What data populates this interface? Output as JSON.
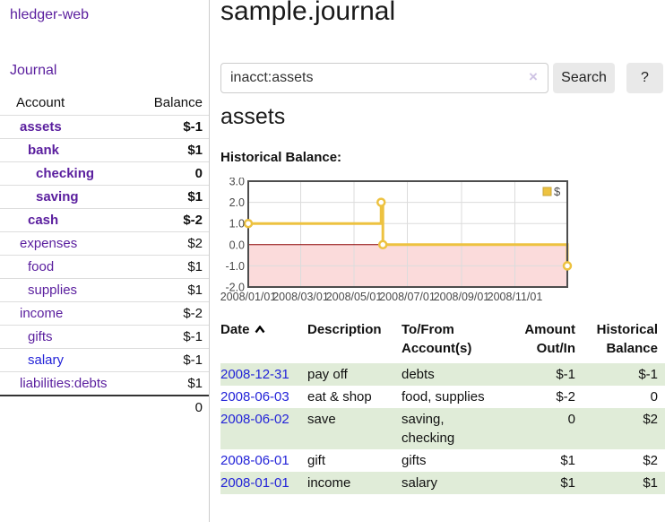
{
  "sidebar": {
    "brand": "hledger-web",
    "nav": {
      "journal": "Journal"
    },
    "accounts_table": {
      "headers": {
        "account": "Account",
        "balance": "Balance"
      },
      "rows": [
        {
          "name": "assets",
          "depth": 0,
          "bold": true,
          "link_color": "purple",
          "balance": "$-1",
          "balance_tone": "neg-strong"
        },
        {
          "name": "bank",
          "depth": 1,
          "bold": true,
          "link_color": "purple",
          "balance": "$1",
          "balance_tone": "normal"
        },
        {
          "name": "checking",
          "depth": 2,
          "bold": true,
          "link_color": "purple",
          "balance": "0",
          "balance_tone": "normal"
        },
        {
          "name": "saving",
          "depth": 2,
          "bold": true,
          "link_color": "purple",
          "balance": "$1",
          "balance_tone": "normal"
        },
        {
          "name": "cash",
          "depth": 1,
          "bold": true,
          "link_color": "purple",
          "balance": "$-2",
          "balance_tone": "neg-strong"
        },
        {
          "name": "expenses",
          "depth": 0,
          "bold": false,
          "link_color": "purple",
          "balance": "$2",
          "balance_tone": "normal"
        },
        {
          "name": "food",
          "depth": 1,
          "bold": false,
          "link_color": "purple",
          "balance": "$1",
          "balance_tone": "normal"
        },
        {
          "name": "supplies",
          "depth": 1,
          "bold": false,
          "link_color": "purple",
          "balance": "$1",
          "balance_tone": "normal"
        },
        {
          "name": "income",
          "depth": 0,
          "bold": false,
          "link_color": "purple",
          "balance": "$-2",
          "balance_tone": "neg-soft"
        },
        {
          "name": "gifts",
          "depth": 1,
          "bold": false,
          "link_color": "purple",
          "balance": "$-1",
          "balance_tone": "neg-soft"
        },
        {
          "name": "salary",
          "depth": 1,
          "bold": false,
          "link_color": "blue",
          "balance": "$-1",
          "balance_tone": "neg-soft"
        },
        {
          "name": "liabilities:debts",
          "depth": 0,
          "bold": false,
          "link_color": "purple",
          "balance": "$1",
          "balance_tone": "normal"
        }
      ],
      "total": "0"
    }
  },
  "main": {
    "title": "sample.journal",
    "search": {
      "value": "inacct:assets",
      "clear_icon": "×",
      "search_label": "Search",
      "help_label": "?"
    },
    "account_heading": "assets",
    "chart_heading": "Historical Balance:",
    "register": {
      "headers": {
        "date": "Date",
        "description": "Description",
        "accounts": "To/From Account(s)",
        "amount": "Amount Out/In",
        "balance": "Historical Balance"
      },
      "rows": [
        {
          "date": "2008-12-31",
          "description": "pay off",
          "accounts": "debts",
          "amount": "$-1",
          "amount_neg": true,
          "balance": "$-1",
          "balance_neg": true
        },
        {
          "date": "2008-06-03",
          "description": "eat & shop",
          "accounts": "food, supplies",
          "amount": "$-2",
          "amount_neg": true,
          "balance": "0",
          "balance_neg": false
        },
        {
          "date": "2008-06-02",
          "description": "save",
          "accounts": "saving, checking",
          "amount": "0",
          "amount_neg": false,
          "balance": "$2",
          "balance_neg": false
        },
        {
          "date": "2008-06-01",
          "description": "gift",
          "accounts": "gifts",
          "amount": "$1",
          "amount_neg": false,
          "balance": "$2",
          "balance_neg": false
        },
        {
          "date": "2008-01-01",
          "description": "income",
          "accounts": "salary",
          "amount": "$1",
          "amount_neg": false,
          "balance": "$1",
          "balance_neg": false
        }
      ]
    }
  },
  "colors": {
    "link_purple": "#5a1e9e",
    "link_blue": "#2323d8",
    "negative_strong": "#9e1414",
    "negative_soft": "#c07474",
    "row_green": "#e0ecd8",
    "button_gray": "#e9e9e9",
    "sidebar_divider": "#cccccc"
  },
  "chart_data": {
    "type": "line",
    "title": "Historical Balance",
    "legend": [
      {
        "label": "$",
        "color": "#edc240"
      }
    ],
    "legend_position": "top-right",
    "grid": true,
    "ylim": [
      -2.0,
      3.0
    ],
    "y_ticks": [
      {
        "value": 3.0,
        "label": "3.0"
      },
      {
        "value": 2.0,
        "label": "2.0"
      },
      {
        "value": 1.0,
        "label": "1.0"
      },
      {
        "value": 0.0,
        "label": "0.0"
      },
      {
        "value": -1.0,
        "label": "-1.0"
      },
      {
        "value": -2.0,
        "label": "-2.0"
      }
    ],
    "x_range_days": 365,
    "x_ticks": [
      {
        "label": "2008/01/01",
        "day": 0
      },
      {
        "label": "2008/03/01",
        "day": 60
      },
      {
        "label": "2008/05/01",
        "day": 121
      },
      {
        "label": "2008/07/01",
        "day": 182
      },
      {
        "label": "2008/09/01",
        "day": 244
      },
      {
        "label": "2008/11/01",
        "day": 305
      }
    ],
    "series": [
      {
        "name": "$",
        "color": "#edc240",
        "step": true,
        "marker": "open-circle",
        "points": [
          {
            "date": "2008-01-01",
            "day": 0,
            "value": 1
          },
          {
            "date": "2008-06-01",
            "day": 152,
            "value": 2
          },
          {
            "date": "2008-06-03",
            "day": 154,
            "value": 0
          },
          {
            "date": "2008-12-31",
            "day": 365,
            "value": -1
          }
        ]
      }
    ],
    "zero_line_color": "#8b0000",
    "negative_region_color": "#fbdbdb",
    "gridline_color": "#dcdcdc",
    "border_color": "#4d4d4d",
    "tick_label_color": "#4a4a4a"
  }
}
